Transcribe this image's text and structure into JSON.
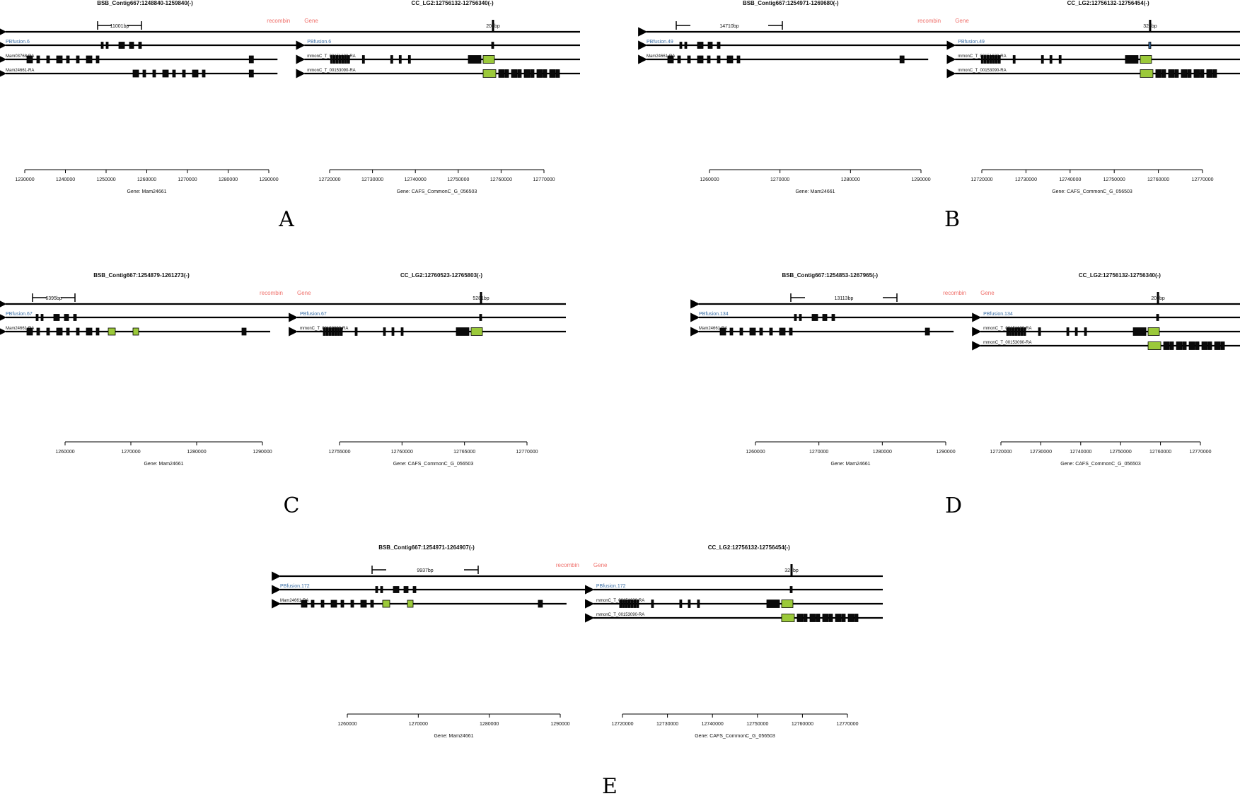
{
  "colors": {
    "line": "#000000",
    "exon": "#0a0a0a",
    "utr": "#9bc93a",
    "fusion": "#3a6ea5",
    "legend": "#ef6f6a",
    "blue_exon": "#3a6ea5"
  },
  "legend": {
    "recombin": "recombin",
    "gene": "Gene"
  },
  "panels": [
    {
      "letter": "A",
      "left": {
        "title": "BSB_Contig667:1248840-1259840(-)",
        "bp": "11001bp",
        "fusion": "PBfusion.6",
        "transcripts": [
          "Mam03768-RA",
          "Mam24661-RA"
        ],
        "ticks": [
          "1230000",
          "1240000",
          "1250000",
          "1260000",
          "1270000",
          "1280000",
          "1290000"
        ],
        "gene": "Gene: Mam24661"
      },
      "right": {
        "title": "CC_LG2:12756132-12756340(-)",
        "bp": "209bp",
        "fusion": "PBfusion.6",
        "transcripts": [
          "mmonC_T_00151630-RA",
          "mmonC_T_00153090-RA"
        ],
        "ticks": [
          "12720000",
          "12730000",
          "12740000",
          "12750000",
          "12760000",
          "12770000"
        ],
        "gene": "Gene: CAFS_CommonC_G_056503"
      }
    },
    {
      "letter": "B",
      "left": {
        "title": "BSB_Contig667:1254971-1269680(-)",
        "bp": "14710bp",
        "fusion": "PBfusion.49",
        "transcripts": [
          "Mam24661-RA"
        ],
        "ticks": [
          "1260000",
          "1270000",
          "1280000",
          "1290000"
        ],
        "gene": "Gene: Mam24661"
      },
      "right": {
        "title": "CC_LG2:12756132-12756454(-)",
        "bp": "323bp",
        "fusion": "PBfusion.49",
        "transcripts": [
          "mmonC_T_00151630-RA",
          "mmonC_T_00153090-RA"
        ],
        "ticks": [
          "12720000",
          "12730000",
          "12740000",
          "12750000",
          "12760000",
          "12770000"
        ],
        "gene": "Gene: CAFS_CommonC_G_056503"
      }
    },
    {
      "letter": "C",
      "left": {
        "title": "BSB_Contig667:1254879-1261273(-)",
        "bp": "6395bp",
        "fusion": "PBfusion.67",
        "transcripts": [
          "Mam24661-RA"
        ],
        "ticks": [
          "1260000",
          "1270000",
          "1280000",
          "1290000"
        ],
        "gene": "Gene: Mam24661"
      },
      "right": {
        "title": "CC_LG2:12760523-12765803(-)",
        "bp": "5281bp",
        "fusion": "PBfusion.67",
        "transcripts": [
          "mmonC_T_00153090-RA"
        ],
        "ticks": [
          "12755000",
          "12760000",
          "12765000",
          "12770000"
        ],
        "gene": "Gene: CAFS_CommonC_G_056503"
      }
    },
    {
      "letter": "D",
      "left": {
        "title": "BSB_Contig667:1254853-1267965(-)",
        "bp": "13113bp",
        "fusion": "PBfusion.134",
        "transcripts": [
          "Mam24661-RA"
        ],
        "ticks": [
          "1260000",
          "1270000",
          "1280000",
          "1290000"
        ],
        "gene": "Gene: Mam24661"
      },
      "right": {
        "title": "CC_LG2:12756132-12756340(-)",
        "bp": "209bp",
        "fusion": "PBfusion.134",
        "transcripts": [
          "mmonC_T_00151630-RA",
          "mmonC_T_00153090-RA"
        ],
        "ticks": [
          "12720000",
          "12730000",
          "12740000",
          "12750000",
          "12760000",
          "12770000"
        ],
        "gene": "Gene: CAFS_CommonC_G_056503"
      }
    },
    {
      "letter": "E",
      "left": {
        "title": "BSB_Contig667:1254971-1264907(-)",
        "bp": "9937bp",
        "fusion": "PBfusion.172",
        "transcripts": [
          "Mam24661-RA"
        ],
        "ticks": [
          "1260000",
          "1270000",
          "1280000",
          "1290000"
        ],
        "gene": "Gene: Mam24661"
      },
      "right": {
        "title": "CC_LG2:12756132-12756454(-)",
        "bp": "323bp",
        "fusion": "PBfusion.172",
        "transcripts": [
          "mmonC_T_00151630-RA",
          "mmonC_T_00153090-RA"
        ],
        "ticks": [
          "12720000",
          "12730000",
          "12740000",
          "12750000",
          "12760000",
          "12770000"
        ],
        "gene": "Gene: CAFS_CommonC_G_056503"
      }
    }
  ]
}
